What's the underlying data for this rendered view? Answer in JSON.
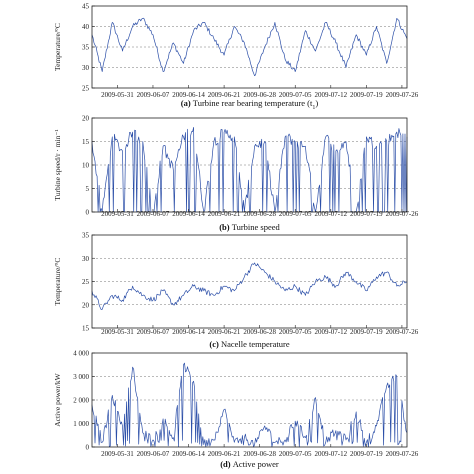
{
  "x_tick_labels": [
    "2009-05-31",
    "2009-06-07",
    "2009-06-14",
    "2009-06-21",
    "2009-06-28",
    "2009-07-05",
    "2009-07-12",
    "2009-07-19",
    "2009-07-26"
  ],
  "line_color": "#2c4fa8",
  "chart_data": [
    {
      "type": "line",
      "caption": {
        "label": "(a)",
        "text": "Turbine rear bearing temperature (t",
        "sub": "1",
        "suffix": ")"
      },
      "ylabel": "Temperature/°C",
      "ylim": [
        25,
        45
      ],
      "yticks": [
        25,
        30,
        35,
        40,
        45
      ],
      "ytick_labels": [
        "25",
        "30",
        "35",
        "40",
        "45"
      ],
      "xlim": [
        "2009-05-26",
        "2009-07-27"
      ],
      "grid": "horizontal dashed",
      "series": [
        {
          "x": [
            "2009-05-26",
            "2009-05-28",
            "2009-05-30",
            "2009-06-01",
            "2009-06-03",
            "2009-06-05",
            "2009-06-07",
            "2009-06-09",
            "2009-06-11",
            "2009-06-13",
            "2009-06-15",
            "2009-06-17",
            "2009-06-19",
            "2009-06-21",
            "2009-06-23",
            "2009-06-25",
            "2009-06-27",
            "2009-06-29",
            "2009-07-01",
            "2009-07-03",
            "2009-07-05",
            "2009-07-07",
            "2009-07-09",
            "2009-07-11",
            "2009-07-13",
            "2009-07-15",
            "2009-07-17",
            "2009-07-19",
            "2009-07-21",
            "2009-07-23",
            "2009-07-25",
            "2009-07-27"
          ],
          "values": [
            38,
            29,
            41,
            34,
            40,
            42,
            38,
            29,
            36,
            31,
            39,
            41,
            37,
            33,
            40,
            36,
            28,
            35,
            41,
            32,
            29,
            39,
            34,
            41,
            36,
            30,
            38,
            33,
            40,
            31,
            42,
            37
          ]
        }
      ]
    },
    {
      "type": "line",
      "caption": {
        "label": "(b)",
        "text": "Turbine speed"
      },
      "ylabel": "Turbine speed/r · min⁻¹",
      "ylim": [
        0,
        20
      ],
      "yticks": [
        0,
        5,
        10,
        15,
        20
      ],
      "ytick_labels": [
        "0",
        "5",
        "10",
        "15",
        "20"
      ],
      "xlim": [
        "2009-05-26",
        "2009-07-27"
      ],
      "grid": "horizontal dashed",
      "series": [
        {
          "x": [
            "2009-05-26",
            "2009-05-28",
            "2009-05-30",
            "2009-06-01",
            "2009-06-03",
            "2009-06-05",
            "2009-06-07",
            "2009-06-09",
            "2009-06-11",
            "2009-06-13",
            "2009-06-15",
            "2009-06-17",
            "2009-06-19",
            "2009-06-21",
            "2009-06-23",
            "2009-06-25",
            "2009-06-27",
            "2009-06-29",
            "2009-07-01",
            "2009-07-03",
            "2009-07-05",
            "2009-07-07",
            "2009-07-09",
            "2009-07-11",
            "2009-07-13",
            "2009-07-15",
            "2009-07-17",
            "2009-07-19",
            "2009-07-21",
            "2009-07-23",
            "2009-07-25",
            "2009-07-27"
          ],
          "values": [
            15,
            0,
            16,
            13,
            17,
            15,
            0,
            14,
            9,
            16,
            18,
            0,
            15,
            17,
            16,
            0,
            14,
            15,
            0,
            16,
            15,
            14,
            0,
            16,
            13,
            15,
            0,
            16,
            14,
            15,
            17,
            16
          ]
        }
      ]
    },
    {
      "type": "line",
      "caption": {
        "label": "(c)",
        "text": "Nacelle temperature"
      },
      "ylabel": "Temperature/°C",
      "ylim": [
        15,
        35
      ],
      "yticks": [
        15,
        20,
        25,
        30,
        35
      ],
      "ytick_labels": [
        "15",
        "20",
        "25",
        "30",
        "35"
      ],
      "xlim": [
        "2009-05-26",
        "2009-07-27"
      ],
      "grid": "horizontal dashed",
      "series": [
        {
          "x": [
            "2009-05-26",
            "2009-05-28",
            "2009-05-30",
            "2009-06-01",
            "2009-06-03",
            "2009-06-05",
            "2009-06-07",
            "2009-06-09",
            "2009-06-11",
            "2009-06-13",
            "2009-06-15",
            "2009-06-17",
            "2009-06-19",
            "2009-06-21",
            "2009-06-23",
            "2009-06-25",
            "2009-06-27",
            "2009-06-29",
            "2009-07-01",
            "2009-07-03",
            "2009-07-05",
            "2009-07-07",
            "2009-07-09",
            "2009-07-11",
            "2009-07-13",
            "2009-07-15",
            "2009-07-17",
            "2009-07-19",
            "2009-07-21",
            "2009-07-23",
            "2009-07-25",
            "2009-07-27"
          ],
          "values": [
            23,
            19,
            22,
            21,
            24,
            22,
            21,
            23,
            20,
            22,
            24,
            23,
            22,
            24,
            23,
            26,
            29,
            27,
            25,
            23,
            24,
            22,
            25,
            26,
            24,
            27,
            25,
            23,
            26,
            27,
            24,
            25
          ]
        }
      ]
    },
    {
      "type": "line",
      "caption": {
        "label": "(d)",
        "text": "Active power"
      },
      "ylabel": "Active power/kW",
      "ylim": [
        0,
        4000
      ],
      "yticks": [
        0,
        1000,
        2000,
        3000,
        4000
      ],
      "ytick_labels": [
        "0",
        "1 000",
        "2 000",
        "3 000",
        "4 000"
      ],
      "xlim": [
        "2009-05-26",
        "2009-07-27"
      ],
      "grid": "horizontal dashed",
      "series": [
        {
          "x": [
            "2009-05-26",
            "2009-05-28",
            "2009-05-30",
            "2009-06-01",
            "2009-06-03",
            "2009-06-05",
            "2009-06-07",
            "2009-06-09",
            "2009-06-11",
            "2009-06-13",
            "2009-06-15",
            "2009-06-17",
            "2009-06-19",
            "2009-06-21",
            "2009-06-23",
            "2009-06-25",
            "2009-06-27",
            "2009-06-29",
            "2009-07-01",
            "2009-07-03",
            "2009-07-05",
            "2009-07-07",
            "2009-07-09",
            "2009-07-11",
            "2009-07-13",
            "2009-07-15",
            "2009-07-17",
            "2009-07-19",
            "2009-07-21",
            "2009-07-23",
            "2009-07-25",
            "2009-07-27"
          ],
          "values": [
            1800,
            200,
            2200,
            900,
            3400,
            600,
            300,
            1200,
            400,
            3500,
            2800,
            100,
            300,
            1600,
            200,
            400,
            100,
            900,
            200,
            300,
            1100,
            400,
            2100,
            200,
            700,
            300,
            1500,
            200,
            900,
            2600,
            3000,
            600
          ]
        }
      ]
    }
  ]
}
